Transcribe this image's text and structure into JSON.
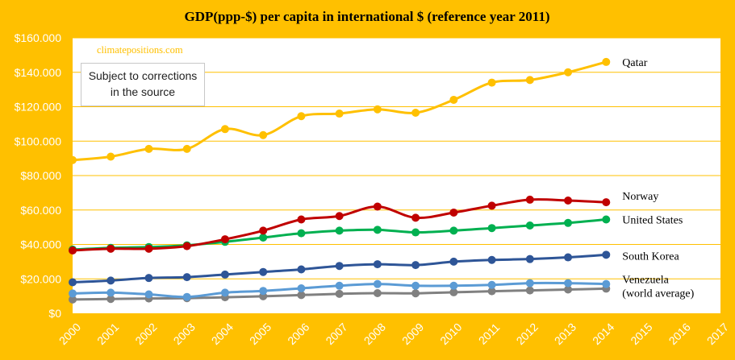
{
  "chart_data": {
    "type": "line",
    "title": "GDP(ppp-$) per capita in international  $ (reference year 2011)",
    "watermark": "climatepositions.com",
    "note_lines": [
      "Subject to corrections",
      "in the source"
    ],
    "x": [
      2000,
      2001,
      2002,
      2003,
      2004,
      2005,
      2006,
      2007,
      2008,
      2009,
      2010,
      2011,
      2012,
      2013,
      2014
    ],
    "x_ticks": [
      "2000",
      "2001",
      "2002",
      "2003",
      "2004",
      "2005",
      "2006",
      "2007",
      "2008",
      "2009",
      "2010",
      "2011",
      "2012",
      "2013",
      "2014",
      "2015",
      "2016",
      "2017"
    ],
    "xlim": [
      2000,
      2017
    ],
    "ylim": [
      0,
      160000
    ],
    "y_ticks": [
      {
        "value": 0,
        "label": "$0"
      },
      {
        "value": 20000,
        "label": "$20.000"
      },
      {
        "value": 40000,
        "label": "$40.000"
      },
      {
        "value": 60000,
        "label": "$60.000"
      },
      {
        "value": 80000,
        "label": "$80.000"
      },
      {
        "value": 100000,
        "label": "$100.000"
      },
      {
        "value": 120000,
        "label": "$120.000"
      },
      {
        "value": 140000,
        "label": "$140.000"
      },
      {
        "value": 160000,
        "label": "$160.000"
      }
    ],
    "grid": true,
    "series": [
      {
        "name": "Qatar",
        "label_lines": [
          "Qatar"
        ],
        "color": "#FFC000",
        "values": [
          89000,
          91000,
          95500,
          95500,
          107000,
          103500,
          114500,
          116000,
          118500,
          116500,
          124000,
          134000,
          135500,
          140000,
          146000
        ]
      },
      {
        "name": "Norway",
        "label_lines": [
          "Norway"
        ],
        "color": "#C00000",
        "values": [
          36500,
          37500,
          37500,
          39000,
          43000,
          48000,
          54500,
          56500,
          62000,
          55500,
          58500,
          62500,
          66000,
          65500,
          64500
        ]
      },
      {
        "name": "United States",
        "label_lines": [
          "United States"
        ],
        "color": "#00B050",
        "values": [
          37000,
          38000,
          38500,
          39500,
          41500,
          44000,
          46500,
          48000,
          48500,
          47000,
          48000,
          49500,
          51000,
          52500,
          54500
        ]
      },
      {
        "name": "South Korea",
        "label_lines": [
          "South Korea"
        ],
        "color": "#2E5597",
        "values": [
          18000,
          19000,
          20500,
          21000,
          22500,
          24000,
          25500,
          27500,
          28500,
          28000,
          30000,
          31000,
          31500,
          32500,
          34000
        ]
      },
      {
        "name": "Venezuela",
        "label_lines": [
          "Venezuela"
        ],
        "color": "#5B9BD5",
        "values": [
          11500,
          12000,
          11000,
          9500,
          12000,
          13000,
          14500,
          16000,
          17000,
          16000,
          16000,
          16500,
          17500,
          17500,
          17000
        ]
      },
      {
        "name": "(world average)",
        "label_lines": [
          "(world average)"
        ],
        "color": "#808080",
        "values": [
          8000,
          8300,
          8600,
          8800,
          9300,
          9900,
          10600,
          11300,
          11700,
          11600,
          12200,
          12800,
          13300,
          13800,
          14300
        ]
      }
    ]
  }
}
